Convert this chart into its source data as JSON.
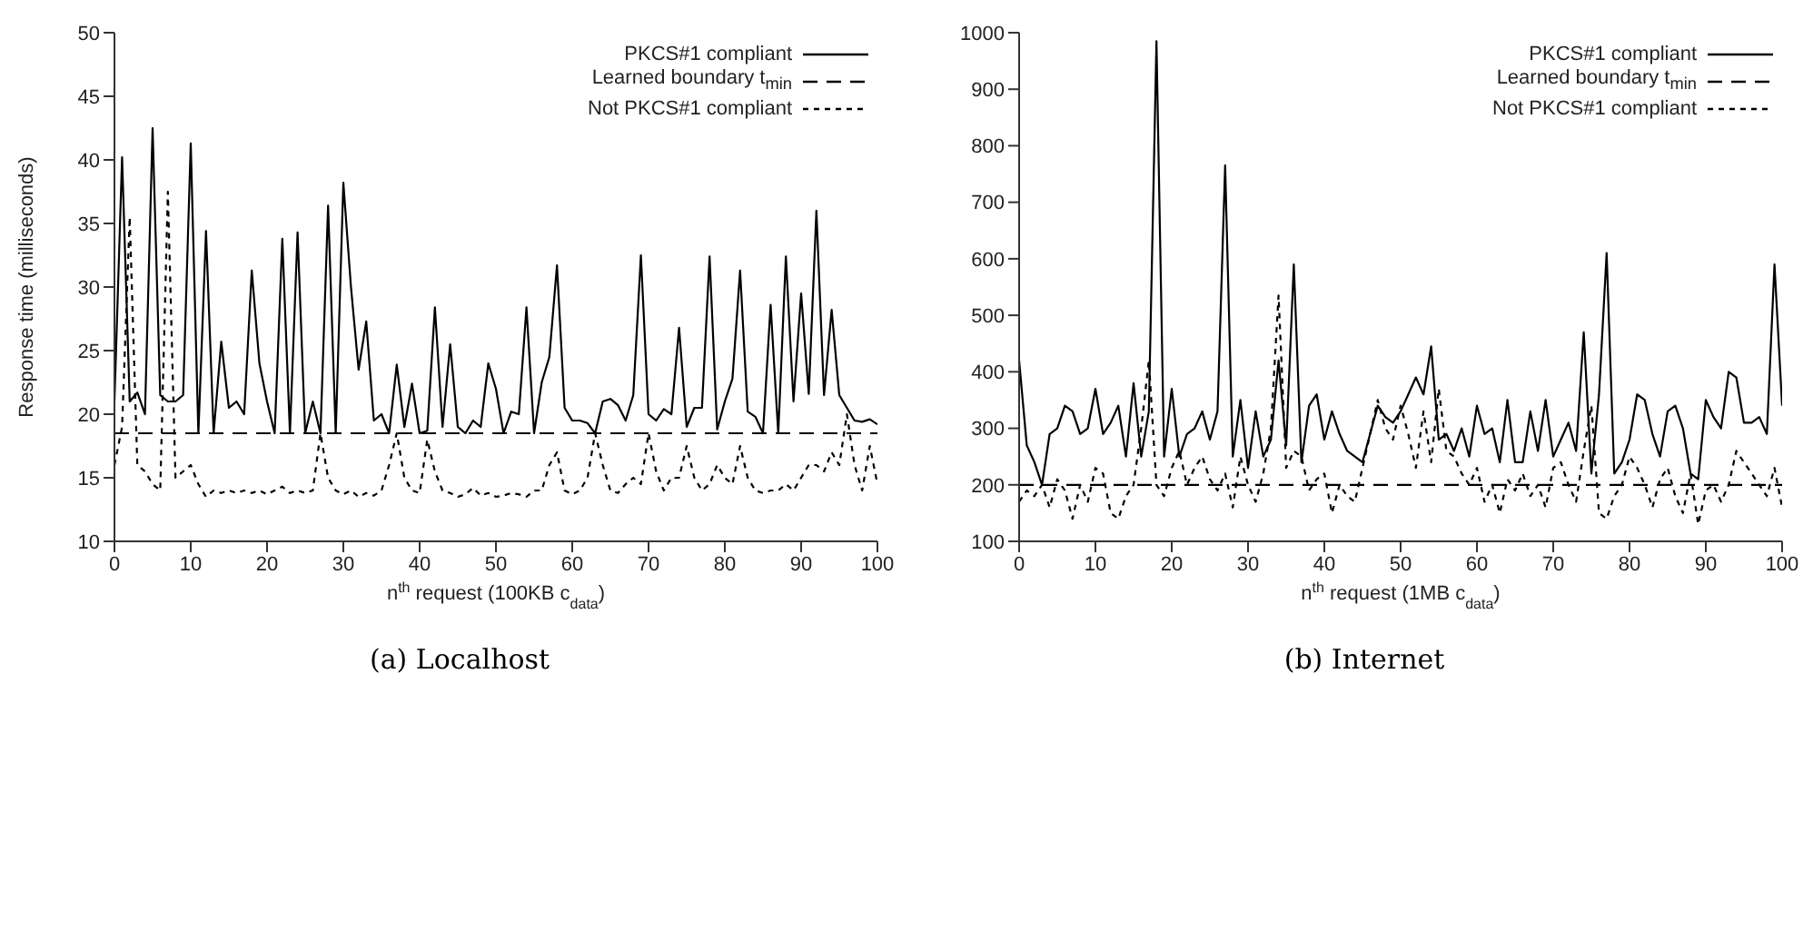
{
  "chart_data": [
    {
      "type": "line",
      "title": "(a) Localhost",
      "xlabel": "n$^{th}$ request (100KB c$_{data}$)",
      "ylabel": "Response time (milliseconds)",
      "xlim": [
        0,
        100
      ],
      "xticks": [
        0,
        10,
        20,
        30,
        40,
        50,
        60,
        70,
        80,
        90,
        100
      ],
      "ylim": [
        10,
        50
      ],
      "yticks": [
        10,
        15,
        20,
        25,
        30,
        35,
        40,
        45,
        50
      ],
      "legend": "top right",
      "marker": "none",
      "ref_lines": [
        {
          "axis": "y",
          "value": 18.5,
          "label": "Learned boundary t$_{min}$",
          "color": "#000000",
          "line_style": "dashed"
        }
      ],
      "x": [
        0,
        1,
        2,
        3,
        4,
        5,
        6,
        7,
        8,
        9,
        10,
        11,
        12,
        13,
        14,
        15,
        16,
        17,
        18,
        19,
        20,
        21,
        22,
        23,
        24,
        25,
        26,
        27,
        28,
        29,
        30,
        31,
        32,
        33,
        34,
        35,
        36,
        37,
        38,
        39,
        40,
        41,
        42,
        43,
        44,
        45,
        46,
        47,
        48,
        49,
        50,
        51,
        52,
        53,
        54,
        55,
        56,
        57,
        58,
        59,
        60,
        61,
        62,
        63,
        64,
        65,
        66,
        67,
        68,
        69,
        70,
        71,
        72,
        73,
        74,
        75,
        76,
        77,
        78,
        79,
        80,
        81,
        82,
        83,
        84,
        85,
        86,
        87,
        88,
        89,
        90,
        91,
        92,
        93,
        94,
        95,
        96,
        97,
        98,
        99,
        100
      ],
      "series": [
        {
          "name": "PKCS#1 compliant",
          "color": "#000000",
          "line_style": "solid",
          "values": [
            21,
            40.2,
            21,
            21.7,
            20,
            42.5,
            21.5,
            21,
            21,
            21.5,
            41.3,
            18.5,
            34.4,
            18.5,
            25.7,
            20.5,
            21,
            20,
            31.3,
            24,
            21,
            18.5,
            33.8,
            18.5,
            34.3,
            18.5,
            21,
            18.5,
            36.4,
            18.5,
            38.2,
            30,
            23.5,
            27.3,
            19.5,
            20,
            18.5,
            23.9,
            19,
            22.4,
            18.5,
            18.7,
            28.4,
            19,
            25.5,
            19,
            18.5,
            19.5,
            19,
            24,
            22,
            18.5,
            20.2,
            20,
            28.4,
            18.5,
            22.5,
            24.5,
            31.7,
            20.5,
            19.5,
            19.5,
            19.3,
            18.5,
            21,
            21.2,
            20.7,
            19.5,
            21.5,
            32.5,
            20,
            19.5,
            20.4,
            20,
            26.8,
            19,
            20.5,
            20.5,
            32.4,
            18.8,
            21,
            22.8,
            31.3,
            20.2,
            19.8,
            18.5,
            28.6,
            18.5,
            32.4,
            21,
            29.5,
            21.6,
            36,
            21.5,
            28.2,
            21.5,
            20.5,
            19.5,
            19.4,
            19.6,
            19.2
          ]
        },
        {
          "name": "Not PKCS#1 compliant",
          "color": "#000000",
          "line_style": "dotted",
          "values": [
            16,
            19,
            35.5,
            16,
            15.5,
            14.5,
            14,
            37.5,
            15,
            15.5,
            16,
            14.5,
            13.5,
            14,
            13.8,
            14,
            13.8,
            14,
            13.8,
            14,
            13.7,
            14,
            14.3,
            13.8,
            14,
            13.8,
            14,
            18.5,
            15,
            14,
            13.7,
            14,
            13.5,
            13.8,
            13.6,
            14,
            16,
            18.5,
            15,
            14,
            13.8,
            18,
            15.5,
            14,
            13.8,
            13.5,
            13.7,
            14.2,
            13.6,
            13.8,
            13.5,
            13.6,
            13.8,
            13.7,
            13.5,
            14,
            14,
            16,
            17,
            14,
            13.7,
            14,
            15,
            18.5,
            16,
            14,
            13.8,
            14.5,
            15,
            14.5,
            18.5,
            15.5,
            14,
            15,
            15,
            17.5,
            15,
            14,
            14.5,
            16,
            15,
            14.5,
            17.5,
            15,
            14,
            13.8,
            14,
            14,
            14.5,
            14,
            15,
            16,
            16,
            15.5,
            17,
            16,
            20,
            16,
            14,
            17.5,
            14.5
          ]
        }
      ]
    },
    {
      "type": "line",
      "title": "(b) Internet",
      "xlabel": "n$^{th}$ request (1MB c$_{data}$)",
      "xlim": [
        0,
        100
      ],
      "xticks": [
        0,
        10,
        20,
        30,
        40,
        50,
        60,
        70,
        80,
        90,
        100
      ],
      "ylim": [
        100,
        1000
      ],
      "yticks": [
        100,
        200,
        300,
        400,
        500,
        600,
        700,
        800,
        900,
        1000
      ],
      "legend": "top right",
      "marker": "none",
      "ref_lines": [
        {
          "axis": "y",
          "value": 200,
          "label": "Learned boundary t$_{min}$",
          "color": "#000000",
          "line_style": "dashed"
        }
      ],
      "x": [
        0,
        1,
        2,
        3,
        4,
        5,
        6,
        7,
        8,
        9,
        10,
        11,
        12,
        13,
        14,
        15,
        16,
        17,
        18,
        19,
        20,
        21,
        22,
        23,
        24,
        25,
        26,
        27,
        28,
        29,
        30,
        31,
        32,
        33,
        34,
        35,
        36,
        37,
        38,
        39,
        40,
        41,
        42,
        43,
        44,
        45,
        46,
        47,
        48,
        49,
        50,
        51,
        52,
        53,
        54,
        55,
        56,
        57,
        58,
        59,
        60,
        61,
        62,
        63,
        64,
        65,
        66,
        67,
        68,
        69,
        70,
        71,
        72,
        73,
        74,
        75,
        76,
        77,
        78,
        79,
        80,
        81,
        82,
        83,
        84,
        85,
        86,
        87,
        88,
        89,
        90,
        91,
        92,
        93,
        94,
        95,
        96,
        97,
        98,
        99,
        100
      ],
      "series": [
        {
          "name": "PKCS#1 compliant",
          "color": "#000000",
          "line_style": "solid",
          "values": [
            420,
            270,
            240,
            200,
            290,
            300,
            340,
            330,
            290,
            300,
            370,
            290,
            310,
            340,
            250,
            380,
            250,
            330,
            985,
            250,
            370,
            250,
            290,
            300,
            330,
            280,
            330,
            765,
            250,
            350,
            230,
            330,
            250,
            280,
            420,
            270,
            590,
            240,
            340,
            360,
            280,
            330,
            290,
            260,
            250,
            240,
            290,
            340,
            320,
            310,
            330,
            360,
            390,
            360,
            445,
            280,
            290,
            260,
            300,
            250,
            340,
            290,
            300,
            240,
            350,
            240,
            240,
            330,
            260,
            350,
            250,
            280,
            310,
            260,
            470,
            220,
            360,
            610,
            220,
            240,
            280,
            360,
            350,
            290,
            250,
            330,
            340,
            300,
            220,
            210,
            350,
            320,
            300,
            400,
            390,
            310,
            310,
            320,
            290,
            590,
            340
          ]
        },
        {
          "name": "Not PKCS#1 compliant",
          "color": "#000000",
          "line_style": "dotted",
          "values": [
            170,
            190,
            180,
            200,
            160,
            210,
            190,
            140,
            200,
            170,
            230,
            220,
            150,
            140,
            180,
            200,
            300,
            420,
            200,
            180,
            230,
            260,
            200,
            230,
            250,
            210,
            190,
            220,
            160,
            250,
            200,
            170,
            220,
            300,
            535,
            230,
            260,
            250,
            190,
            210,
            220,
            150,
            200,
            180,
            170,
            230,
            290,
            350,
            300,
            280,
            340,
            290,
            230,
            330,
            240,
            370,
            260,
            250,
            220,
            200,
            230,
            170,
            200,
            150,
            210,
            190,
            220,
            180,
            200,
            160,
            230,
            240,
            200,
            170,
            260,
            340,
            150,
            140,
            180,
            200,
            250,
            230,
            200,
            160,
            210,
            230,
            180,
            150,
            220,
            130,
            190,
            200,
            170,
            200,
            260,
            240,
            220,
            200,
            180,
            230,
            160
          ]
        }
      ]
    }
  ]
}
